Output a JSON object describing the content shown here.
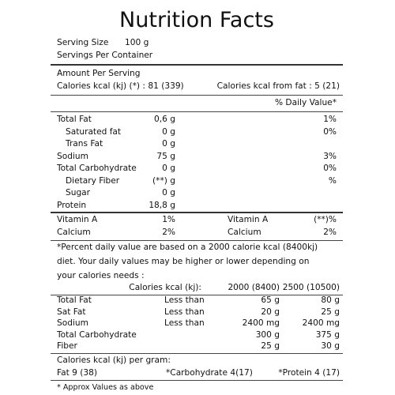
{
  "title": "Nutrition Facts",
  "serving": {
    "size_label": "Serving Size",
    "size_value": "100 g",
    "per_container_label": "Servings Per Container"
  },
  "amount": {
    "header": "Amount Per Serving",
    "calories": "Calories kcal (kj) (*) : 81 (339)",
    "calories_from_fat": "Calories kcal from fat : 5 (21)",
    "dv_header": "% Daily Value*"
  },
  "nutrients": [
    {
      "name": "Total Fat",
      "amount": "0,6 g",
      "dv": "1%",
      "indent": false
    },
    {
      "name": "Saturated fat",
      "amount": "0 g",
      "dv": "0%",
      "indent": true
    },
    {
      "name": "Trans Fat",
      "amount": "0 g",
      "dv": "",
      "indent": true
    },
    {
      "name": "Sodium",
      "amount": "75 g",
      "dv": "3%",
      "indent": false
    },
    {
      "name": "Total Carbohydrate",
      "amount": "0 g",
      "dv": "0%",
      "indent": false
    },
    {
      "name": "Dietary Fiber",
      "amount": "(**) g",
      "dv": "%",
      "indent": true
    },
    {
      "name": "Sugar",
      "amount": "0 g",
      "dv": "",
      "indent": true
    },
    {
      "name": "Protein",
      "amount": "18,8 g",
      "dv": "",
      "indent": false
    }
  ],
  "vitamins": [
    {
      "name1": "Vitamin A",
      "val1": "1%",
      "name2": "Vitamin A",
      "val2": "(**)%"
    },
    {
      "name1": "Calcium",
      "val1": "2%",
      "name2": "Calcium",
      "val2": "2%"
    }
  ],
  "footnote_lines": [
    "*Percent daily value are based on a 2000 calorie kcal (8400kj)",
    "diet. Your daily values may be higher or lower depending on",
    "your calories needs :"
  ],
  "reference": {
    "header": {
      "label": "Calories kcal (kj):",
      "c1": "2000 (8400)",
      "c2": "2500 (10500)"
    },
    "rows": [
      {
        "name": "Total Fat",
        "qual": "Less than",
        "c1": "65 g",
        "c2": "80 g"
      },
      {
        "name": "Sat Fat",
        "qual": "Less than",
        "c1": "20 g",
        "c2": "25 g"
      },
      {
        "name": "Sodium",
        "qual": "Less than",
        "c1": "2400 mg",
        "c2": "2400 mg"
      },
      {
        "name": "Total Carbohydrate",
        "qual": "",
        "c1": "300 g",
        "c2": "375 g"
      },
      {
        "name": "Fiber",
        "qual": "",
        "c1": "25 g",
        "c2": "30 g"
      }
    ]
  },
  "calories_per_gram": {
    "label": "Calories kcal (kj) per gram:",
    "fat": "Fat 9 (38)",
    "carb": "*Carbohydrate 4(17)",
    "protein": "*Protein 4 (17)"
  },
  "approx_note": "* Approx Values as above"
}
